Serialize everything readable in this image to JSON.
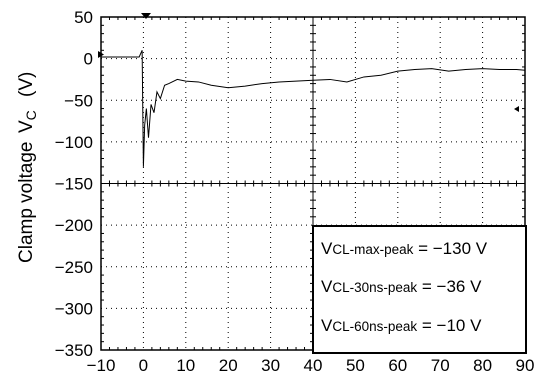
{
  "chart_data": {
    "type": "line",
    "title": "",
    "xlabel": "",
    "ylabel_main": "Clamp voltage",
    "ylabel_symbol": "V",
    "ylabel_subscript": "C",
    "ylabel_unit": "(V)",
    "xlim": [
      -10,
      90
    ],
    "ylim": [
      -350,
      50
    ],
    "x_ticks": [
      "−10",
      "0",
      "10",
      "20",
      "30",
      "40",
      "50",
      "60",
      "70",
      "80",
      "90"
    ],
    "y_ticks": [
      "50",
      "0",
      "−50",
      "−100",
      "−150",
      "−200",
      "−250",
      "−300",
      "−350"
    ],
    "grid": "dotted",
    "series": [
      {
        "x": [
          -10,
          -5,
          -1,
          -0.3,
          0,
          0.3,
          0.7,
          1.2,
          1.8,
          2.5,
          3.2,
          4,
          5,
          6,
          8,
          10,
          13,
          16,
          20,
          24,
          28,
          32,
          36,
          40,
          44,
          48,
          52,
          56,
          60,
          64,
          68,
          72,
          76,
          80,
          84,
          88,
          90
        ],
        "y": [
          2,
          2,
          2,
          10,
          -130,
          -80,
          -60,
          -95,
          -55,
          -65,
          -40,
          -48,
          -32,
          -30,
          -25,
          -27,
          -28,
          -32,
          -35,
          -33,
          -30,
          -28,
          -27,
          -26,
          -25,
          -28,
          -22,
          -20,
          -15,
          -13,
          -12,
          -15,
          -13,
          -12,
          -13,
          -13,
          -14
        ]
      }
    ],
    "annotations": [
      {
        "symbol": "V",
        "subscript": "CL-max-peak",
        "value": " = −130 V"
      },
      {
        "symbol": "V",
        "subscript": "CL-30ns-peak",
        "value": " = −36 V"
      },
      {
        "symbol": "V",
        "subscript": "CL-60ns-peak",
        "value": " = −10 V"
      }
    ]
  }
}
